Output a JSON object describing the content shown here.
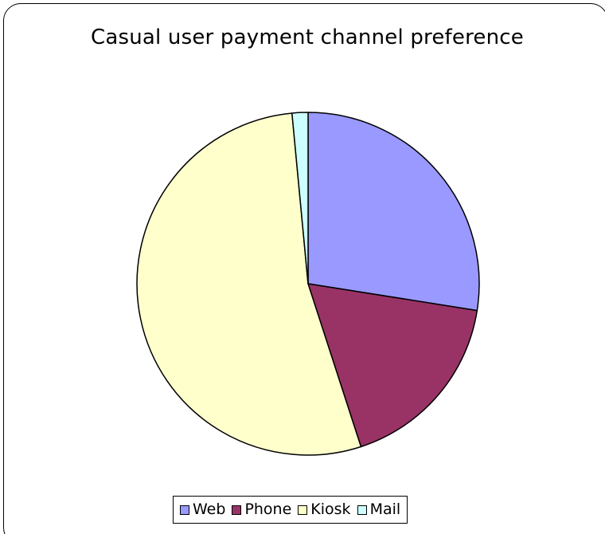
{
  "chart_data": {
    "type": "pie",
    "title": "Casual user payment channel preference",
    "legend_position": "bottom",
    "categories": [
      "Web",
      "Phone",
      "Kiosk",
      "Mail"
    ],
    "values": [
      27.5,
      17.5,
      53.5,
      1.5
    ],
    "colors": [
      "#9999FF",
      "#993366",
      "#FFFFCC",
      "#CCFFFF"
    ],
    "start_angle_deg": 0,
    "direction": "clockwise"
  }
}
